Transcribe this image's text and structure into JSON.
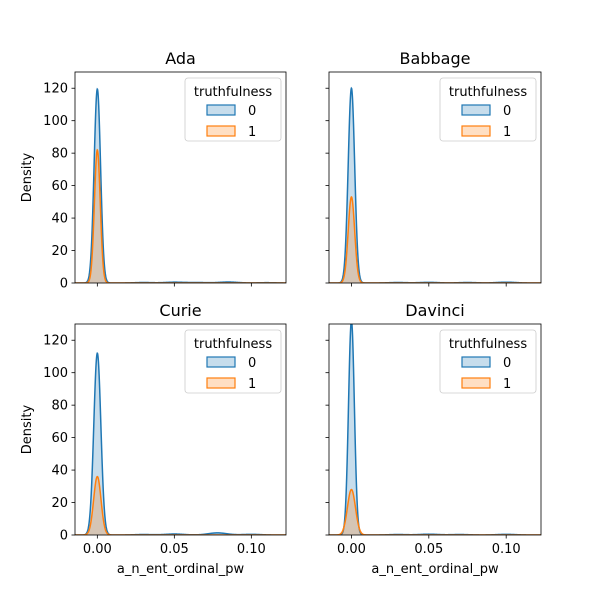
{
  "chart_data": [
    {
      "type": "area",
      "title": "Ada",
      "xlabel": "",
      "ylabel": "Density",
      "xlim": [
        -0.0145,
        0.1225
      ],
      "ylim": [
        0,
        130
      ],
      "x_ticks": [
        "0.00",
        "0.05",
        "0.10"
      ],
      "x_ticklabels_shown": false,
      "y_ticks": [
        "0",
        "20",
        "40",
        "60",
        "80",
        "100",
        "120"
      ],
      "y_ticklabels_shown": true,
      "legend": {
        "title": "truthfulness",
        "position": "top-right",
        "entries": [
          "0",
          "1"
        ]
      },
      "series": [
        {
          "name": "0",
          "color": "#1f77b4",
          "peak_x": 0.0,
          "peak_y": 119.5,
          "width": 0.0021,
          "tail": [
            [
              0.03,
              0.3
            ],
            [
              0.05,
              0.5
            ],
            [
              0.065,
              0.3
            ],
            [
              0.085,
              0.6
            ],
            [
              0.11,
              0.2
            ]
          ]
        },
        {
          "name": "1",
          "color": "#ff7f0e",
          "peak_x": 0.0,
          "peak_y": 82,
          "width": 0.0019,
          "tail": []
        }
      ]
    },
    {
      "type": "area",
      "title": "Babbage",
      "xlabel": "",
      "ylabel": "",
      "xlim": [
        -0.0145,
        0.1225
      ],
      "ylim": [
        0,
        130
      ],
      "x_ticks": [
        "0.00",
        "0.05",
        "0.10"
      ],
      "x_ticklabels_shown": false,
      "y_ticks": [
        "0",
        "20",
        "40",
        "60",
        "80",
        "100",
        "120"
      ],
      "y_ticklabels_shown": false,
      "legend": {
        "title": "truthfulness",
        "position": "top-right",
        "entries": [
          "0",
          "1"
        ]
      },
      "series": [
        {
          "name": "0",
          "color": "#1f77b4",
          "peak_x": 0.0,
          "peak_y": 120,
          "width": 0.0021,
          "tail": [
            [
              0.03,
              0.3
            ],
            [
              0.05,
              0.4
            ],
            [
              0.075,
              0.3
            ],
            [
              0.1,
              0.5
            ]
          ]
        },
        {
          "name": "1",
          "color": "#ff7f0e",
          "peak_x": 0.0,
          "peak_y": 53,
          "width": 0.0021,
          "tail": []
        }
      ]
    },
    {
      "type": "area",
      "title": "Curie",
      "xlabel": "a_n_ent_ordinal_pw",
      "ylabel": "Density",
      "xlim": [
        -0.0145,
        0.1225
      ],
      "ylim": [
        0,
        130
      ],
      "x_ticks": [
        "0.00",
        "0.05",
        "0.10"
      ],
      "x_ticklabels_shown": true,
      "y_ticks": [
        "0",
        "20",
        "40",
        "60",
        "80",
        "100",
        "120"
      ],
      "y_ticklabels_shown": true,
      "legend": {
        "title": "truthfulness",
        "position": "top-right",
        "entries": [
          "0",
          "1"
        ]
      },
      "series": [
        {
          "name": "0",
          "color": "#1f77b4",
          "peak_x": 0.0,
          "peak_y": 112,
          "width": 0.0023,
          "tail": [
            [
              0.03,
              0.3
            ],
            [
              0.05,
              0.6
            ],
            [
              0.078,
              1.3
            ],
            [
              0.1,
              0.4
            ]
          ]
        },
        {
          "name": "1",
          "color": "#ff7f0e",
          "peak_x": 0.0,
          "peak_y": 36,
          "width": 0.0024,
          "tail": []
        }
      ]
    },
    {
      "type": "area",
      "title": "Davinci",
      "xlabel": "a_n_ent_ordinal_pw",
      "ylabel": "",
      "xlim": [
        -0.0145,
        0.1225
      ],
      "ylim": [
        0,
        130
      ],
      "x_ticks": [
        "0.00",
        "0.05",
        "0.10"
      ],
      "x_ticklabels_shown": true,
      "y_ticks": [
        "0",
        "20",
        "40",
        "60",
        "80",
        "100",
        "120"
      ],
      "y_ticklabels_shown": false,
      "legend": {
        "title": "truthfulness",
        "position": "top-right",
        "entries": [
          "0",
          "1"
        ]
      },
      "series": [
        {
          "name": "0",
          "color": "#1f77b4",
          "peak_x": 0.0,
          "peak_y": 132,
          "width": 0.0019,
          "tail": [
            [
              0.03,
              0.3
            ],
            [
              0.05,
              0.5
            ],
            [
              0.07,
              0.3
            ],
            [
              0.1,
              0.4
            ]
          ]
        },
        {
          "name": "1",
          "color": "#ff7f0e",
          "peak_x": 0.0,
          "peak_y": 28,
          "width": 0.0026,
          "tail": []
        }
      ]
    }
  ]
}
